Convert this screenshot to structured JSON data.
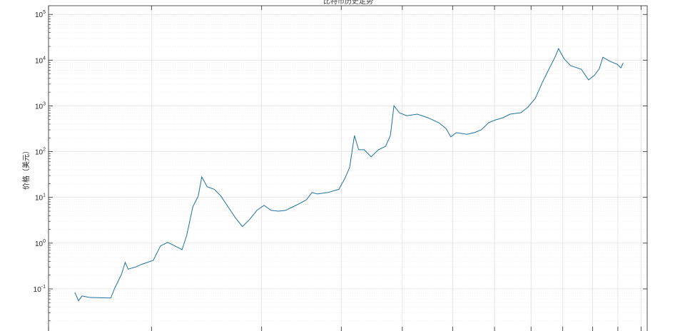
{
  "chart_data": {
    "type": "line",
    "title": "比特币历史走势",
    "xlabel": "",
    "ylabel": "价格（美元）",
    "yscale": "log",
    "ylim": [
      0.012,
      155000
    ],
    "xlim": [
      0,
      100
    ],
    "grid": true,
    "minor_grid": true,
    "line_color": "#1f6f9f",
    "y_ticks": [
      {
        "value": 0.1,
        "base": "10",
        "exp": "-1"
      },
      {
        "value": 1,
        "base": "10",
        "exp": "0"
      },
      {
        "value": 10,
        "base": "10",
        "exp": "1"
      },
      {
        "value": 100,
        "base": "10",
        "exp": "2"
      },
      {
        "value": 1000,
        "base": "10",
        "exp": "3"
      },
      {
        "value": 10000,
        "base": "10",
        "exp": "4"
      },
      {
        "value": 100000,
        "base": "10",
        "exp": "5"
      }
    ],
    "x_ticks": [
      0,
      17.2,
      35.6,
      48.9,
      59.1,
      67.5,
      74.5,
      80.6,
      85.9,
      90.9,
      95.1,
      99.0
    ],
    "series": [
      {
        "x": [
          4.4,
          5.0,
          5.6,
          6.8,
          10.4,
          11.0,
          12.2,
          12.8,
          13.3,
          14.5,
          15.7,
          17.5,
          18.7,
          19.9,
          21.1,
          22.3,
          23.1,
          24.1,
          25.0,
          25.6,
          26.5,
          27.7,
          28.8,
          30.0,
          31.2,
          32.4,
          33.6,
          34.8,
          36.0,
          37.2,
          38.4,
          39.6,
          40.8,
          42.0,
          43.1,
          44.0,
          44.9,
          46.7,
          48.5,
          49.5,
          50.3,
          51.1,
          51.8,
          52.7,
          53.9,
          55.1,
          56.3,
          57.1,
          57.7,
          58.6,
          59.8,
          61.6,
          63.4,
          65.2,
          66.4,
          67.2,
          68.1,
          69.9,
          71.1,
          72.3,
          73.5,
          74.7,
          75.9,
          77.1,
          78.9,
          80.1,
          81.3,
          82.5,
          83.7,
          84.6,
          85.2,
          86.1,
          87.2,
          89.0,
          90.2,
          91.2,
          92.0,
          92.6,
          93.8,
          95.0,
          95.6,
          96.0
        ],
        "y": [
          0.084,
          0.055,
          0.07,
          0.065,
          0.063,
          0.1,
          0.21,
          0.38,
          0.27,
          0.3,
          0.35,
          0.42,
          0.87,
          1.04,
          0.87,
          0.72,
          1.5,
          6.2,
          10.7,
          28,
          17,
          15,
          10.7,
          6.2,
          3.6,
          2.3,
          3.3,
          5.2,
          6.7,
          5.2,
          5.0,
          5.2,
          6.2,
          7.4,
          8.9,
          12.8,
          11.9,
          12.8,
          15,
          26,
          45,
          225,
          110,
          110,
          77,
          110,
          131,
          225,
          1010,
          710,
          610,
          660,
          550,
          430,
          320,
          210,
          260,
          240,
          260,
          300,
          430,
          495,
          550,
          660,
          710,
          945,
          1450,
          3300,
          6800,
          11600,
          17900,
          10800,
          7600,
          6300,
          3700,
          4700,
          6500,
          11600,
          9400,
          8100,
          6800,
          8700
        ]
      }
    ]
  }
}
